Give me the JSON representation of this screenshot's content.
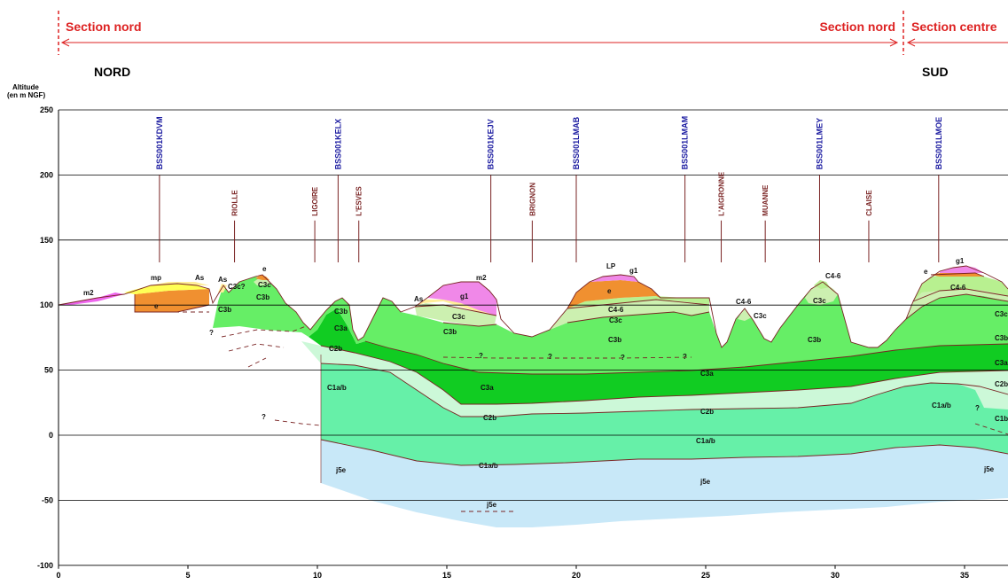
{
  "header": {
    "sections": [
      "Section nord",
      "Section nord",
      "Section centre"
    ],
    "north_label": "NORD",
    "south_label": "SUD",
    "altitude_title_line1": "Altitude",
    "altitude_title_line2": "(en m NGF)"
  },
  "axes": {
    "y_ticks": [
      "250",
      "200",
      "150",
      "100",
      "50",
      "0",
      "-50",
      "-100"
    ],
    "x_ticks": [
      "0",
      "5",
      "10",
      "15",
      "20",
      "25",
      "30",
      "35"
    ],
    "y_range": [
      -100,
      250
    ],
    "x_range": [
      0,
      37
    ]
  },
  "wells": [
    {
      "code": "BSS001KDVM",
      "x": 3.9
    },
    {
      "code": "BSS001KELX",
      "x": 10.8
    },
    {
      "code": "BSS001KEJV",
      "x": 16.7
    },
    {
      "code": "BSS001LMAB",
      "x": 20.0
    },
    {
      "code": "BSS001LMAM",
      "x": 24.2
    },
    {
      "code": "BSS001LMEY",
      "x": 29.4
    },
    {
      "code": "BSS001LMOE",
      "x": 34.0
    }
  ],
  "rivers": [
    {
      "name": "RIOLLE",
      "x": 6.8
    },
    {
      "name": "LIGOIRE",
      "x": 9.9
    },
    {
      "name": "L'ESVES",
      "x": 11.6
    },
    {
      "name": "BRIGNON",
      "x": 18.3
    },
    {
      "name": "L'AIGRONNE",
      "x": 25.6
    },
    {
      "name": "MUANNE",
      "x": 27.3
    },
    {
      "name": "CLAISE",
      "x": 31.3
    }
  ],
  "layer_labels": [
    "m2",
    "mp",
    "As",
    "As",
    "C3c?",
    "e",
    "C3c",
    "C3b",
    "C3b",
    "e",
    "?",
    "C3b",
    "C3a",
    "C2b",
    "C1a/b",
    "?",
    "j5e",
    "As",
    "m2",
    "g1",
    "C3c",
    "C3b",
    "?",
    "?",
    "?",
    "?",
    "C3a",
    "C2b",
    "C1a/b",
    "j5e",
    "LP",
    "g1",
    "e",
    "C4-6",
    "C3c",
    "C3b",
    "C3a",
    "C2b",
    "C4-6",
    "C3c",
    "C4-6",
    "C3c",
    "C3b",
    "C1a/b",
    "j5e",
    "e",
    "g1",
    "C4-6",
    "C3c",
    "C3b",
    "C3a",
    "C2b",
    "C1a/b",
    "?",
    "C1b",
    "j5e"
  ],
  "colors": {
    "C3b": "#66ee66",
    "C3a": "#11cc22",
    "C2b": "#ccf8d8",
    "C1ab": "#66f0a8",
    "j5e": "#c8e8f8",
    "C3c": "#ccf0b0",
    "C4_6": "#b8f090",
    "e": "#f09030",
    "g1": "#f088e8",
    "mp": "#ffff55",
    "As": "#ffee99",
    "m2": "#ee66ee",
    "boundary": "#7a2424",
    "section": "#dd2222",
    "well": "#1a1aa0",
    "river": "#7a2424"
  }
}
